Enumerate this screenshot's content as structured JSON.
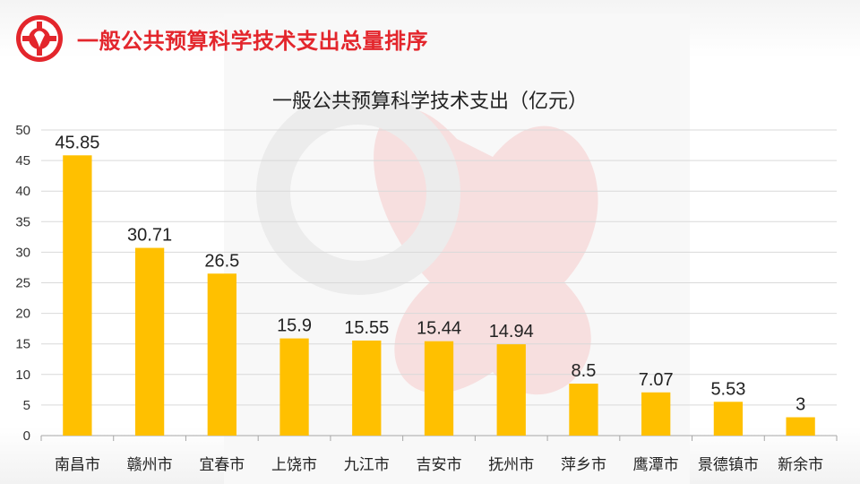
{
  "header": {
    "title": "一般公共预算科学技术支出总量排序",
    "logo_icon": "red-gear-logo-icon"
  },
  "colors": {
    "brand_red": "#e3262c",
    "bar_fill": "#ffc000",
    "grid": "#d9d9d9",
    "axis_text": "#333333"
  },
  "chart_data": {
    "type": "bar",
    "title": "一般公共预算科学技术支出（亿元）",
    "categories": [
      "南昌市",
      "赣州市",
      "宜春市",
      "上饶市",
      "九江市",
      "吉安市",
      "抚州市",
      "萍乡市",
      "鹰潭市",
      "景德镇市",
      "新余市"
    ],
    "values": [
      45.85,
      30.71,
      26.5,
      15.9,
      15.55,
      15.44,
      14.94,
      8.5,
      7.07,
      5.53,
      3
    ],
    "data_labels": [
      "45.85",
      "30.71",
      "26.5",
      "15.9",
      "15.55",
      "15.44",
      "14.94",
      "8.5",
      "7.07",
      "5.53",
      "3"
    ],
    "ylim": [
      0,
      50
    ],
    "yticks": [
      "0",
      "5",
      "10",
      "15",
      "20",
      "25",
      "30",
      "35",
      "40",
      "45",
      "50"
    ],
    "grid": true,
    "legend": "none",
    "xlabel": "",
    "ylabel": ""
  }
}
